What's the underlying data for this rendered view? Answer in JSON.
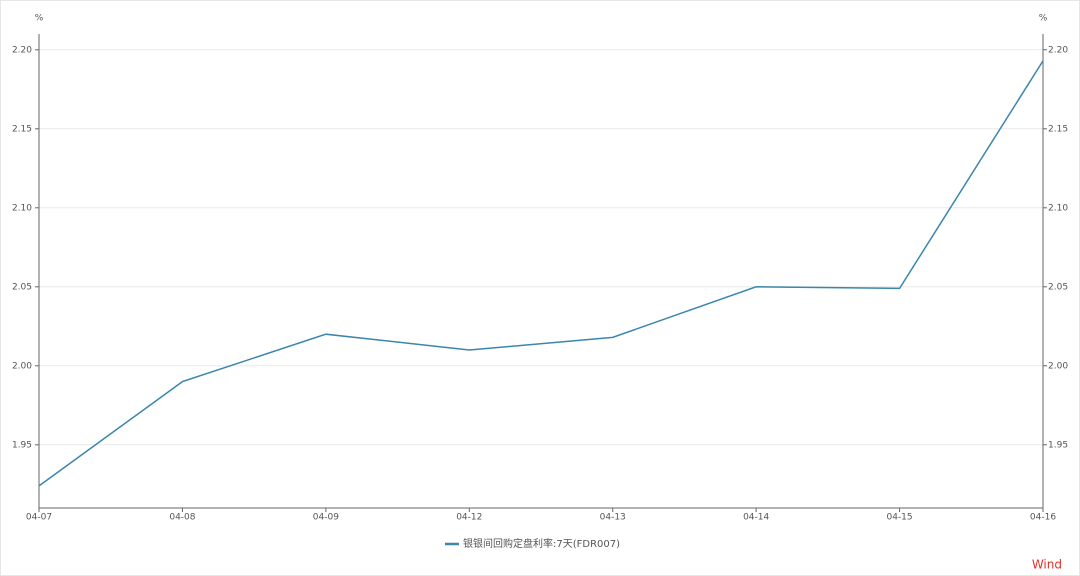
{
  "chart_data": {
    "type": "line",
    "y_label": "%",
    "y2_label": "%",
    "categories": [
      "04-07",
      "04-08",
      "04-09",
      "04-12",
      "04-13",
      "04-14",
      "04-15",
      "04-16"
    ],
    "series": [
      {
        "name": "银银间回购定盘利率:7天(FDR007)",
        "color": "#3a86ad",
        "values": [
          1.924,
          1.99,
          2.02,
          2.01,
          2.018,
          2.05,
          2.049,
          2.193
        ]
      }
    ],
    "ylim": [
      1.91,
      2.21
    ],
    "yticks": [
      1.95,
      {
        "value": 2.0,
        "label": "2.00"
      },
      2.05,
      {
        "value": 2.1,
        "label": "2.10"
      },
      2.15,
      {
        "value": 2.2,
        "label": "2.20"
      }
    ],
    "y2lim": [
      1.91,
      2.21
    ],
    "y2ticks": [
      1.95,
      {
        "value": 2.0,
        "label": "2.00"
      },
      2.05,
      {
        "value": 2.1,
        "label": "2.10"
      },
      2.15,
      {
        "value": 2.2,
        "label": "2.20"
      }
    ],
    "grid": true,
    "legend": "bottom",
    "watermark": "Wind"
  }
}
